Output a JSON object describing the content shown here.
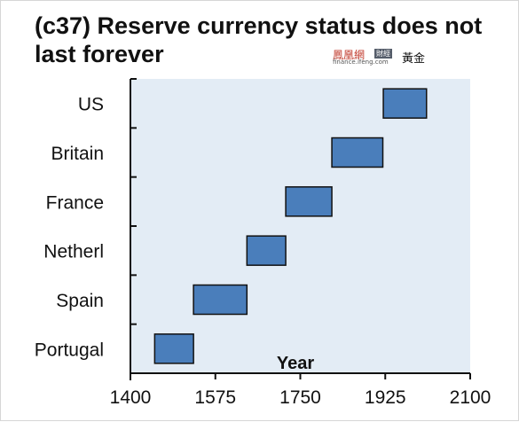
{
  "chart_data": {
    "type": "bar",
    "orientation": "horizontal-range",
    "title": "(c37) Reserve currency status does not last forever",
    "xlabel": "Year",
    "ylabel": "",
    "xlim": [
      1400,
      2100
    ],
    "xticks": [
      1400,
      1575,
      1750,
      1925,
      2100
    ],
    "grid": false,
    "legend": "none",
    "categories": [
      "Portugal",
      "Spain",
      "Netherl",
      "France",
      "Britain",
      "US"
    ],
    "series": [
      {
        "values": [
          {
            "category": "Portugal",
            "start": 1450,
            "end": 1530
          },
          {
            "category": "Spain",
            "start": 1530,
            "end": 1640
          },
          {
            "category": "Netherl",
            "start": 1640,
            "end": 1720
          },
          {
            "category": "France",
            "start": 1720,
            "end": 1815
          },
          {
            "category": "Britain",
            "start": 1815,
            "end": 1920
          },
          {
            "category": "US",
            "start": 1921,
            "end": 2010
          }
        ]
      }
    ],
    "colors": {
      "bar_fill": "#4a7ebb",
      "bar_stroke": "#111111",
      "plot_background": "#e3ecf5",
      "axis": "#111111"
    }
  },
  "watermark": {
    "site_name": "鳳凰網",
    "section_tag": "財經",
    "domain": "finance.ifeng.com",
    "channel": "黃金"
  }
}
